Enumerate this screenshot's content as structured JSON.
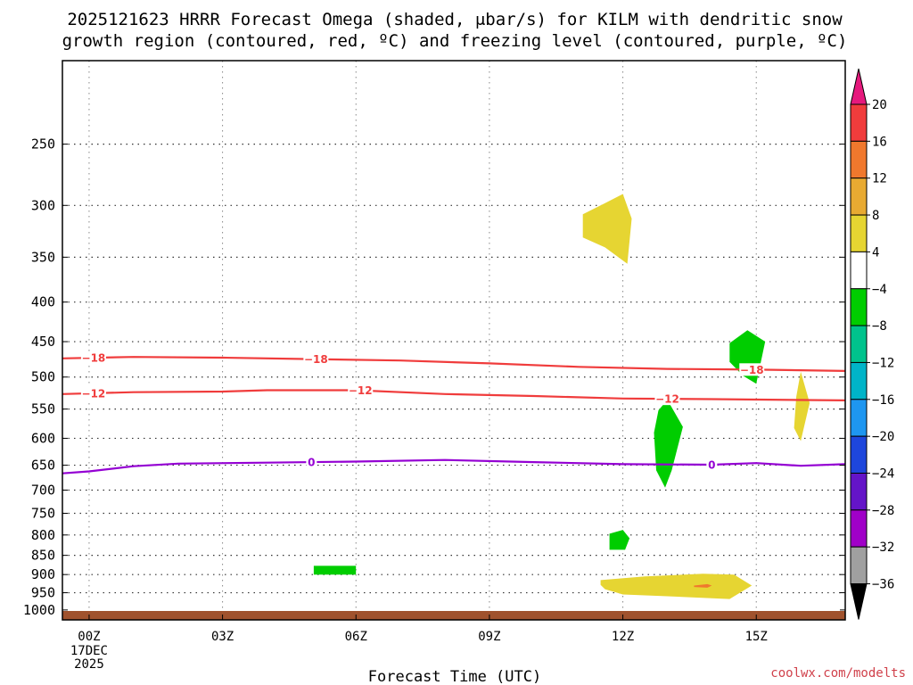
{
  "title_line1": "2025121623 HRRR Forecast Omega (shaded, μbar/s) for KILM with dendritic snow",
  "title_line2": "growth region (contoured, red, ºC) and freezing level (contoured, purple, ºC)",
  "credit": "coolwx.com/modelts",
  "chart_data": {
    "type": "heatmap",
    "xlabel": "Forecast Time (UTC)",
    "x_ticks": [
      {
        "hour": 0,
        "label": "00Z",
        "sub": [
          "17DEC",
          "2025"
        ]
      },
      {
        "hour": 3,
        "label": "03Z"
      },
      {
        "hour": 6,
        "label": "06Z"
      },
      {
        "hour": 9,
        "label": "09Z"
      },
      {
        "hour": 12,
        "label": "12Z"
      },
      {
        "hour": 15,
        "label": "15Z"
      }
    ],
    "xlim": [
      -0.6,
      17
    ],
    "y_scale": "log",
    "ylim": [
      1030,
      195
    ],
    "y_ticks": [
      250,
      300,
      350,
      400,
      450,
      500,
      550,
      600,
      650,
      700,
      750,
      800,
      850,
      900,
      950,
      1000
    ],
    "y_grid_levels": [
      250,
      300,
      350,
      400,
      450,
      500,
      550,
      600,
      650,
      700,
      750,
      800,
      850,
      900,
      950
    ],
    "grid": true,
    "surface_color": "#a0522d",
    "colorbar": {
      "labels": [
        "20",
        "16",
        "12",
        "8",
        "4",
        "−4",
        "−8",
        "−12",
        "−16",
        "−20",
        "−24",
        "−28",
        "−32",
        "−36"
      ],
      "band_colors": [
        "#f03c3c",
        "#f0782d",
        "#e8aa32",
        "#e6d532",
        "#ffffff",
        "#00cd00",
        "#00c38c",
        "#00b4c8",
        "#1e96f0",
        "#1e46dc",
        "#6414c8",
        "#a000c8",
        "#a0a0a0"
      ],
      "top_color": "#e6197d",
      "bottom_color": "#000000"
    },
    "shaded_regions": [
      {
        "color": "#e6d532",
        "points": [
          [
            11.1,
            308
          ],
          [
            11.6,
            298
          ],
          [
            12.0,
            290
          ],
          [
            12.2,
            312
          ],
          [
            12.1,
            357
          ],
          [
            11.6,
            340
          ],
          [
            11.1,
            330
          ]
        ]
      },
      {
        "color": "#00cd00",
        "points": [
          [
            14.4,
            452
          ],
          [
            14.8,
            435
          ],
          [
            15.2,
            450
          ],
          [
            15.0,
            510
          ],
          [
            14.7,
            498
          ],
          [
            14.4,
            478
          ]
        ]
      },
      {
        "color": "#e6d532",
        "points": [
          [
            16.0,
            492
          ],
          [
            16.2,
            540
          ],
          [
            16.0,
            605
          ],
          [
            15.85,
            582
          ],
          [
            15.9,
            530
          ]
        ]
      },
      {
        "color": "#00cd00",
        "points": [
          [
            12.8,
            552
          ],
          [
            13.0,
            535
          ],
          [
            13.35,
            580
          ],
          [
            13.1,
            660
          ],
          [
            12.95,
            695
          ],
          [
            12.75,
            660
          ],
          [
            12.7,
            590
          ]
        ]
      },
      {
        "color": "#00cd00",
        "points": [
          [
            11.7,
            797
          ],
          [
            12.0,
            788
          ],
          [
            12.15,
            808
          ],
          [
            12.05,
            836
          ],
          [
            11.7,
            836
          ]
        ]
      },
      {
        "color": "#00cd00",
        "points": [
          [
            5.05,
            877
          ],
          [
            6.0,
            877
          ],
          [
            6.0,
            900
          ],
          [
            5.05,
            900
          ]
        ]
      },
      {
        "color": "#e6d532",
        "points": [
          [
            11.5,
            915
          ],
          [
            12.5,
            905
          ],
          [
            13.8,
            898
          ],
          [
            14.5,
            900
          ],
          [
            14.9,
            930
          ],
          [
            14.4,
            968
          ],
          [
            13.0,
            960
          ],
          [
            12.0,
            955
          ],
          [
            11.6,
            940
          ],
          [
            11.5,
            928
          ]
        ]
      },
      {
        "color": "#f0782d",
        "points": [
          [
            13.6,
            930
          ],
          [
            13.9,
            926
          ],
          [
            14.0,
            930
          ],
          [
            13.9,
            936
          ],
          [
            13.6,
            934
          ]
        ]
      }
    ],
    "contours": [
      {
        "value": -18,
        "label": "−18",
        "color": "#f03c3c",
        "points": [
          [
            -0.6,
            473
          ],
          [
            1,
            471
          ],
          [
            3,
            472
          ],
          [
            5,
            474
          ],
          [
            7,
            476
          ],
          [
            9,
            480
          ],
          [
            11,
            485
          ],
          [
            13,
            488
          ],
          [
            15,
            489
          ],
          [
            17,
            491
          ]
        ],
        "label_hours": [
          0.1,
          5.1,
          14.9
        ]
      },
      {
        "value": -12,
        "label": "−12",
        "color": "#f03c3c",
        "points": [
          [
            -0.6,
            526
          ],
          [
            1,
            523
          ],
          [
            3,
            522
          ],
          [
            4,
            520
          ],
          [
            6,
            520
          ],
          [
            8,
            526
          ],
          [
            10,
            529
          ],
          [
            12,
            533
          ],
          [
            14,
            534
          ],
          [
            17,
            536
          ]
        ],
        "label_hours": [
          0.1,
          6.1,
          13.0
        ]
      },
      {
        "value": 0,
        "label": "0",
        "color": "#9400d3",
        "points": [
          [
            -0.6,
            666
          ],
          [
            0,
            662
          ],
          [
            1,
            652
          ],
          [
            2,
            647
          ],
          [
            4,
            645
          ],
          [
            6,
            643
          ],
          [
            8,
            640
          ],
          [
            10,
            644
          ],
          [
            12,
            648
          ],
          [
            14,
            649
          ],
          [
            15,
            646
          ],
          [
            16,
            651
          ],
          [
            17,
            648
          ]
        ],
        "label_hours": [
          5.0,
          14.0
        ]
      }
    ]
  }
}
